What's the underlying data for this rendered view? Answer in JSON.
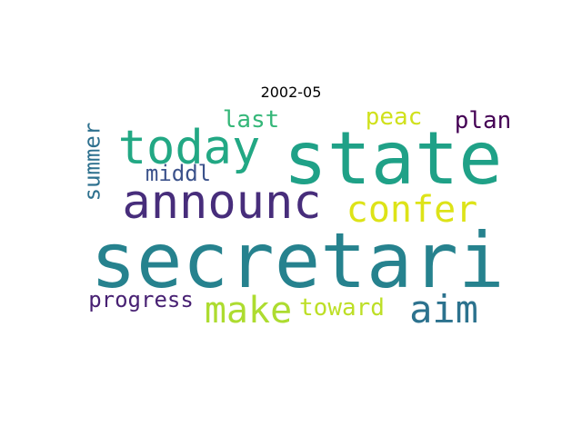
{
  "title": "2002-05",
  "words": [
    {
      "text": "secretari",
      "color": "#26828e"
    },
    {
      "text": "state",
      "color": "#1fa187"
    },
    {
      "text": "announc",
      "color": "#472d7b"
    },
    {
      "text": "today",
      "color": "#22a884"
    },
    {
      "text": "confer",
      "color": "#dde318"
    },
    {
      "text": "aim",
      "color": "#2c728e"
    },
    {
      "text": "make",
      "color": "#addc30"
    },
    {
      "text": "toward",
      "color": "#bddf26"
    },
    {
      "text": "progress",
      "color": "#482173"
    },
    {
      "text": "plan",
      "color": "#440154"
    },
    {
      "text": "peac",
      "color": "#d0e11c"
    },
    {
      "text": "last",
      "color": "#35b779"
    },
    {
      "text": "middl",
      "color": "#3b528b"
    },
    {
      "text": "summer",
      "color": "#2d708e"
    }
  ]
}
